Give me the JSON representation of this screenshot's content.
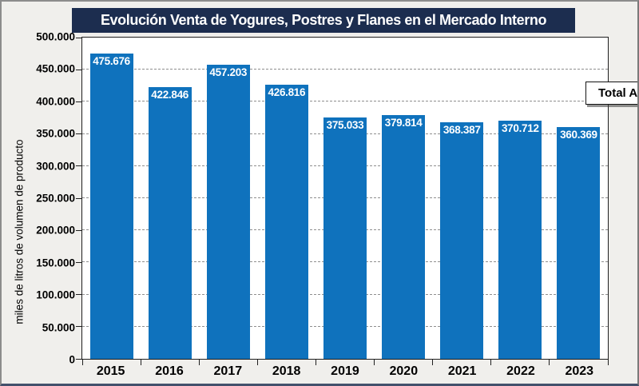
{
  "title": {
    "text": "Evolución Venta de Yogures, Postres y Flanes en el Mercado Interno",
    "bg_color": "#1c2d4f",
    "text_color": "#ffffff"
  },
  "legend": {
    "label": "Total Anual",
    "position": "top-right"
  },
  "axis": {
    "y_title": "miles de litros de volumen de producto"
  },
  "chart_data": {
    "type": "bar",
    "title": "Evolución Venta de Yogures, Postres y Flanes en el Mercado Interno",
    "categories": [
      "2015",
      "2016",
      "2017",
      "2018",
      "2019",
      "2020",
      "2021",
      "2022",
      "2023"
    ],
    "values": [
      475676,
      422846,
      457203,
      426816,
      375033,
      379814,
      368387,
      370712,
      360369
    ],
    "value_labels": [
      "475.676",
      "422.846",
      "457.203",
      "426.816",
      "375.033",
      "379.814",
      "368.387",
      "370.712",
      "360.369"
    ],
    "series_name": "Total Anual",
    "xlabel": "",
    "ylabel": "miles de litros de volumen de producto",
    "ylim": [
      0,
      500000
    ],
    "ytick_interval": 50000,
    "ytick_labels": [
      "0",
      "50.000",
      "100.000",
      "150.000",
      "200.000",
      "250.000",
      "300.000",
      "350.000",
      "400.000",
      "450.000",
      "500.000"
    ],
    "grid": "horizontal-dashed",
    "legend_position": "top-right",
    "bar_color": "#0f72bd",
    "bar_label_color": "#ffffff",
    "gridline_color": "#8f8f8f"
  }
}
